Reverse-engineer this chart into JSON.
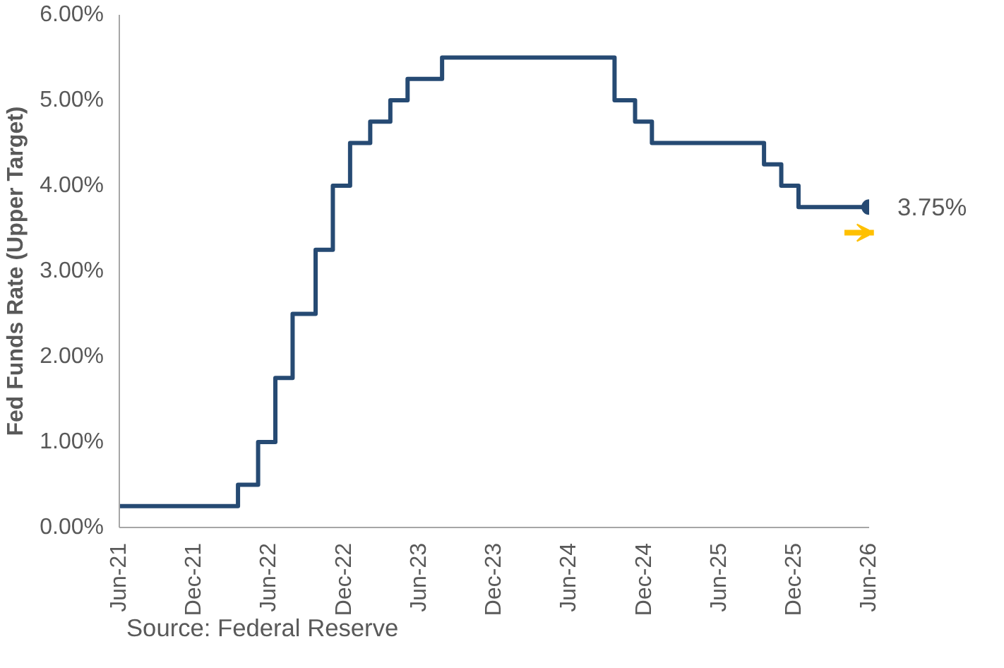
{
  "chart_data": {
    "type": "step",
    "ylabel": "Fed Funds Rate (Upper Target)",
    "x": [
      "2021-06-01",
      "2022-03-17",
      "2022-05-05",
      "2022-06-16",
      "2022-07-28",
      "2022-09-22",
      "2022-11-03",
      "2022-12-15",
      "2023-02-02",
      "2023-03-23",
      "2023-05-04",
      "2023-07-27",
      "2024-09-19",
      "2024-11-08",
      "2024-12-19",
      "2025-09-18",
      "2025-10-30",
      "2025-12-11",
      "2026-06-01"
    ],
    "series": [
      {
        "color": "#264a73",
        "values": [
          0.25,
          0.5,
          1.0,
          1.75,
          2.5,
          3.25,
          4.0,
          4.5,
          4.75,
          5.0,
          5.25,
          5.5,
          5.0,
          4.75,
          4.5,
          4.25,
          4.0,
          3.75,
          3.75
        ]
      }
    ],
    "xlim": [
      "2021-06-01",
      "2026-06-01"
    ],
    "xticks": [
      {
        "value": "2021-06-01",
        "label": "Jun-21"
      },
      {
        "value": "2021-12-01",
        "label": "Dec-21"
      },
      {
        "value": "2022-06-01",
        "label": "Jun-22"
      },
      {
        "value": "2022-12-01",
        "label": "Dec-22"
      },
      {
        "value": "2023-06-01",
        "label": "Jun-23"
      },
      {
        "value": "2023-12-01",
        "label": "Dec-23"
      },
      {
        "value": "2024-06-01",
        "label": "Jun-24"
      },
      {
        "value": "2024-12-01",
        "label": "Dec-24"
      },
      {
        "value": "2025-06-01",
        "label": "Jun-25"
      },
      {
        "value": "2025-12-01",
        "label": "Dec-25"
      },
      {
        "value": "2026-06-01",
        "label": "Jun-26"
      }
    ],
    "ylim": [
      0,
      6
    ],
    "yticks": [
      {
        "value": 0,
        "label": "0.00%"
      },
      {
        "value": 1,
        "label": "1.00%"
      },
      {
        "value": 2,
        "label": "2.00%"
      },
      {
        "value": 3,
        "label": "3.00%"
      },
      {
        "value": 4,
        "label": "4.00%"
      },
      {
        "value": 5,
        "label": "5.00%"
      },
      {
        "value": 6,
        "label": "6.00%"
      }
    ],
    "annotations": [
      {
        "text": "3.75%",
        "x": "2026-06-01",
        "y": 3.75
      },
      "Source: Federal Reserve"
    ],
    "grid": false
  }
}
